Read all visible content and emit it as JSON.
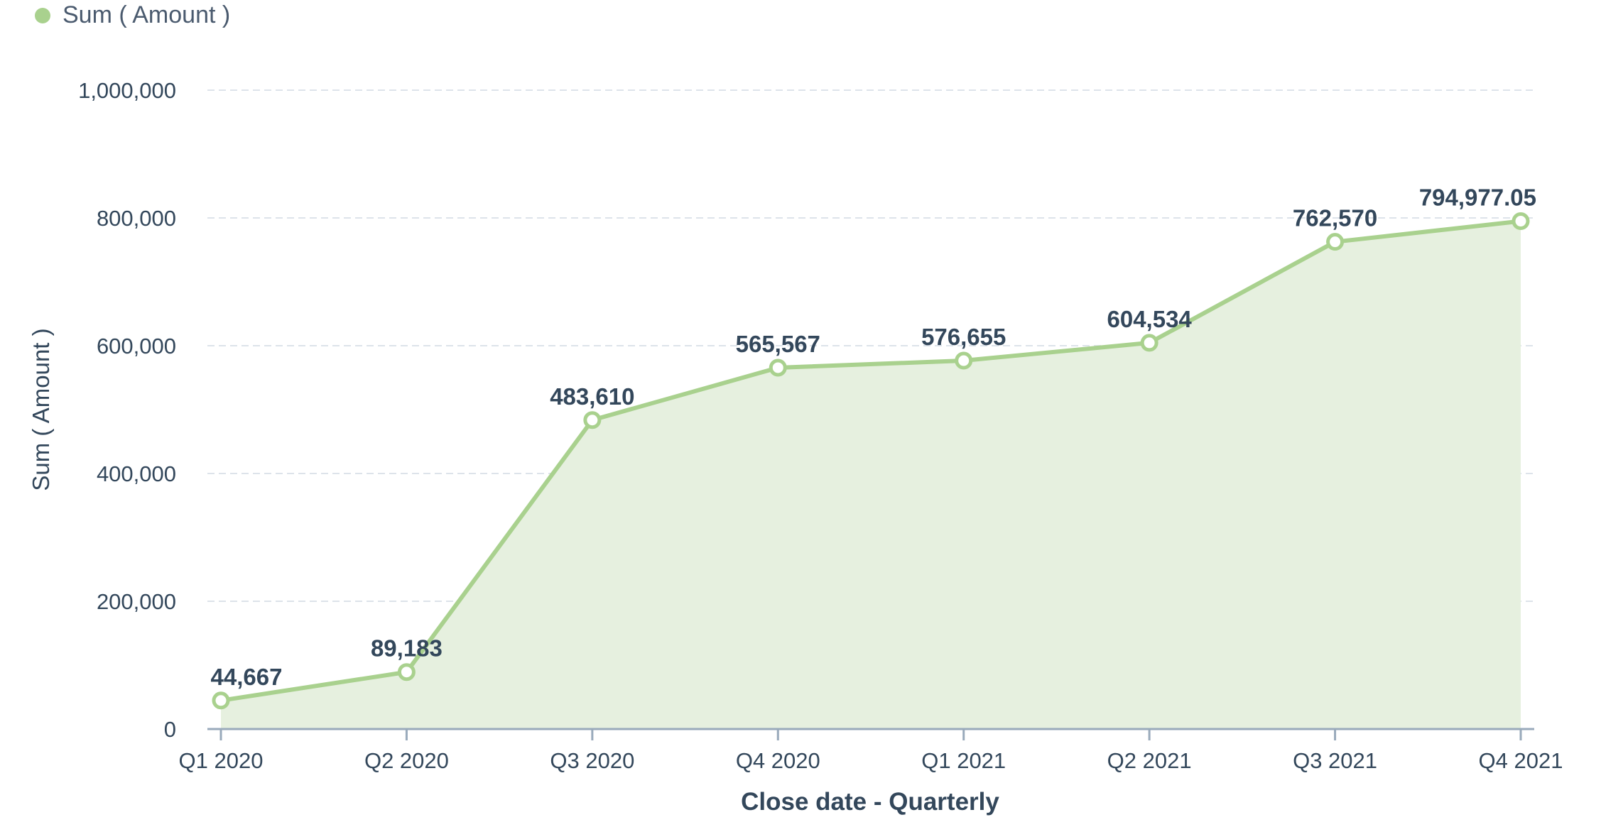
{
  "legend": {
    "label": "Sum ( Amount )"
  },
  "chart_data": {
    "type": "area",
    "title": "",
    "xlabel": "Close date - Quarterly",
    "ylabel": "Sum ( Amount )",
    "categories": [
      "Q1 2020",
      "Q2 2020",
      "Q3 2020",
      "Q4 2020",
      "Q1 2021",
      "Q2 2021",
      "Q3 2021",
      "Q4 2021"
    ],
    "series": [
      {
        "name": "Sum ( Amount )",
        "values": [
          44667,
          89183,
          483610,
          565567,
          576655,
          604534,
          762570,
          794977.05
        ],
        "labels": [
          "44,667",
          "89,183",
          "483,610",
          "565,567",
          "576,655",
          "604,534",
          "762,570",
          "794,977.05"
        ]
      }
    ],
    "ylim": [
      0,
      1000000
    ],
    "yticks": [
      0,
      200000,
      400000,
      600000,
      800000,
      1000000
    ],
    "ytick_labels": [
      "0",
      "200,000",
      "400,000",
      "600,000",
      "800,000",
      "1,000,000"
    ],
    "grid": true,
    "legend_position": "top-left",
    "colors": {
      "line": "#a9d18e",
      "fill": "#e6f0df",
      "grid": "#dde3ea",
      "axis": "#99aabb"
    }
  }
}
